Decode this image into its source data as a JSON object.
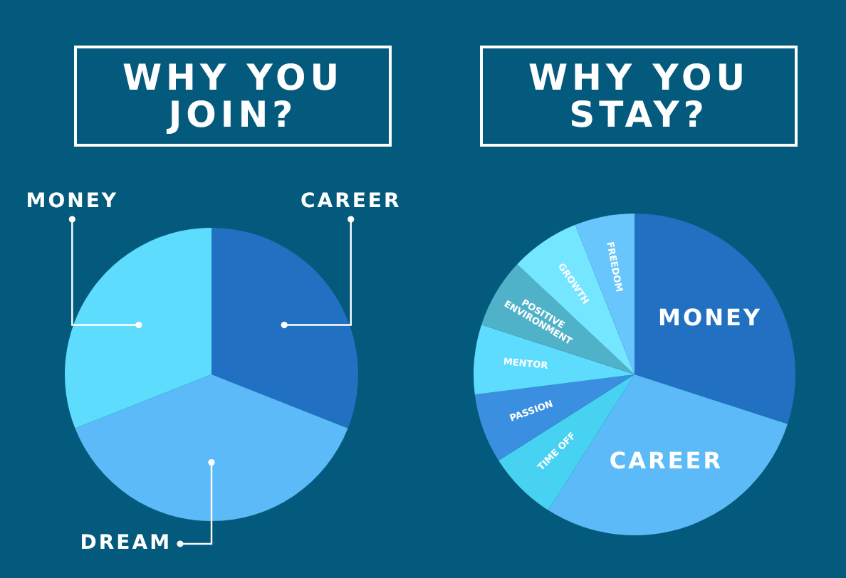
{
  "chart_data": [
    {
      "type": "pie",
      "title": "WHY YOU JOIN?",
      "categories": [
        "CAREER",
        "DREAM",
        "MONEY"
      ],
      "values": [
        31,
        38,
        31
      ],
      "colors": [
        "#2170c2",
        "#5bbaf7",
        "#5ddcfd"
      ]
    },
    {
      "type": "pie",
      "title": "WHY YOU STAY?",
      "categories": [
        "MONEY",
        "CAREER",
        "TIME OFF",
        "PASSION",
        "MENTOR",
        "POSITIVE ENVIRONMENT",
        "GROWTH",
        "FREEDOM"
      ],
      "values": [
        30,
        29,
        7,
        7,
        7,
        7,
        7,
        6
      ],
      "colors": [
        "#2170c2",
        "#5bbaf7",
        "#48d2f2",
        "#3b8fe0",
        "#5ddcfd",
        "#4fb2c9",
        "#74e6ff",
        "#68c6fc"
      ]
    }
  ]
}
